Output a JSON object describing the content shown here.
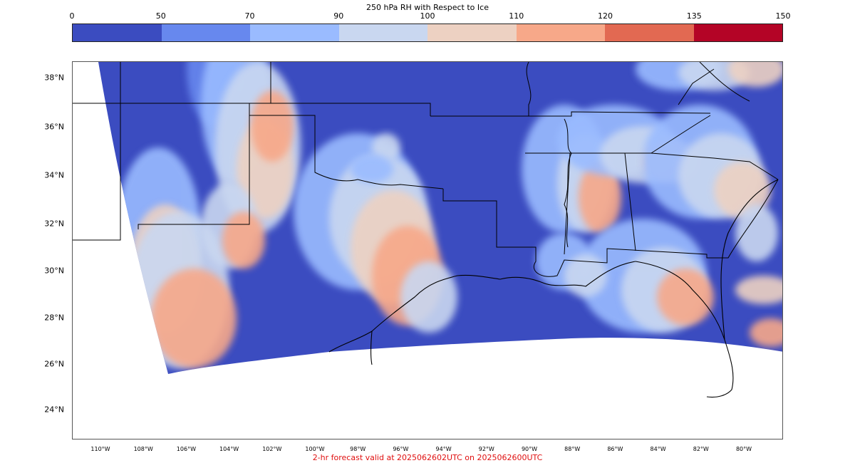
{
  "title": "250 hPa RH with Respect to Ice",
  "colorbar": {
    "ticks": [
      "0",
      "50",
      "70",
      "90",
      "100",
      "110",
      "120",
      "135",
      "150"
    ],
    "colors": [
      "#3b4cc0",
      "#6788ee",
      "#9abbff",
      "#c9d7f0",
      "#edd1c2",
      "#f7a889",
      "#e26952",
      "#b40426"
    ]
  },
  "lat_labels": [
    "38°N",
    "36°N",
    "34°N",
    "32°N",
    "30°N",
    "28°N",
    "26°N",
    "24°N"
  ],
  "lon_labels": [
    "110°W",
    "108°W",
    "106°W",
    "104°W",
    "102°W",
    "100°W",
    "98°W",
    "96°W",
    "94°W",
    "92°W",
    "90°W",
    "88°W",
    "86°W",
    "84°W",
    "82°W",
    "80°W"
  ],
  "footer": "2-hr forecast valid at 2025062602UTC on 2025062600UTC",
  "map": {
    "background_color": "#3b4cc0",
    "border_color": "#000000"
  }
}
